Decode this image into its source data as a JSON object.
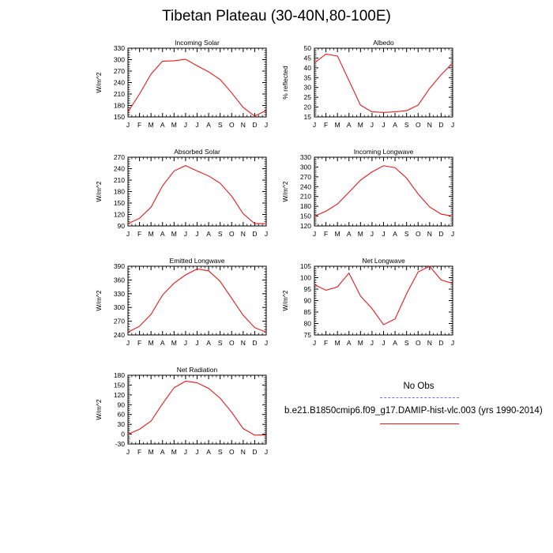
{
  "title": "Tibetan Plateau (30-40N,80-100E)",
  "legend": {
    "obs_label": "No Obs",
    "model_label": "b.e21.B1850cmip6.f09_g17.DAMIP-hist-vlc.003 (yrs 1990-2014)",
    "model_color": "#e31a1c",
    "obs_color": "#6f6fff"
  },
  "chart_data": [
    {
      "type": "line",
      "title": "Incoming Solar",
      "ylabel": "W/m^2",
      "x": [
        "J",
        "F",
        "M",
        "A",
        "M",
        "J",
        "J",
        "A",
        "S",
        "O",
        "N",
        "D",
        "J"
      ],
      "ylim": [
        150,
        330
      ],
      "yticks": [
        150,
        180,
        210,
        240,
        270,
        300,
        330
      ],
      "series": [
        {
          "values": [
            163,
            210,
            262,
            296,
            297,
            301,
            284,
            268,
            248,
            213,
            175,
            152,
            167
          ]
        }
      ]
    },
    {
      "type": "line",
      "title": "Albedo",
      "ylabel": "% reflected",
      "x": [
        "J",
        "F",
        "M",
        "A",
        "M",
        "J",
        "J",
        "A",
        "S",
        "O",
        "N",
        "D",
        "J"
      ],
      "ylim": [
        15,
        50
      ],
      "yticks": [
        15,
        20,
        25,
        30,
        35,
        40,
        45,
        50
      ],
      "series": [
        {
          "values": [
            42.5,
            47,
            46,
            33.5,
            21,
            17.6,
            17.3,
            17.6,
            18.2,
            21,
            29.5,
            36.5,
            42.5
          ]
        }
      ]
    },
    {
      "type": "line",
      "title": "Absorbed Solar",
      "ylabel": "W/m^2",
      "x": [
        "J",
        "F",
        "M",
        "A",
        "M",
        "J",
        "J",
        "A",
        "S",
        "O",
        "N",
        "D",
        "J"
      ],
      "ylim": [
        90,
        270
      ],
      "yticks": [
        90,
        120,
        150,
        180,
        210,
        240,
        270
      ],
      "series": [
        {
          "values": [
            96,
            110,
            139,
            195,
            234,
            248,
            234,
            221,
            202,
            168,
            122,
            96,
            96
          ]
        }
      ]
    },
    {
      "type": "line",
      "title": "Incoming Longwave",
      "ylabel": "W/m^2",
      "x": [
        "J",
        "F",
        "M",
        "A",
        "M",
        "J",
        "J",
        "A",
        "S",
        "O",
        "N",
        "D",
        "J"
      ],
      "ylim": [
        120,
        330
      ],
      "yticks": [
        120,
        150,
        180,
        210,
        240,
        270,
        300,
        330
      ],
      "series": [
        {
          "values": [
            150,
            165,
            187,
            223,
            260,
            285,
            304,
            298,
            266,
            218,
            178,
            156,
            150
          ]
        }
      ]
    },
    {
      "type": "line",
      "title": "Emitted Longwave",
      "ylabel": "W/m^2",
      "x": [
        "J",
        "F",
        "M",
        "A",
        "M",
        "J",
        "J",
        "A",
        "S",
        "O",
        "N",
        "D",
        "J"
      ],
      "ylim": [
        240,
        390
      ],
      "yticks": [
        240,
        270,
        300,
        330,
        360,
        390
      ],
      "series": [
        {
          "values": [
            246,
            259,
            285,
            327,
            353,
            371,
            384,
            380,
            357,
            320,
            283,
            256,
            246
          ]
        }
      ]
    },
    {
      "type": "line",
      "title": "Net Longwave",
      "ylabel": "W/m^2",
      "x": [
        "J",
        "F",
        "M",
        "A",
        "M",
        "J",
        "J",
        "A",
        "S",
        "O",
        "N",
        "D",
        "J"
      ],
      "ylim": [
        75,
        105
      ],
      "yticks": [
        75,
        80,
        85,
        90,
        95,
        100,
        105
      ],
      "series": [
        {
          "values": [
            97,
            94.5,
            96,
            102,
            92,
            86.5,
            79.5,
            82,
            93,
            102.5,
            105,
            99,
            97.5
          ]
        }
      ]
    },
    {
      "type": "line",
      "title": "Net Radiation",
      "ylabel": "W/m^2",
      "x": [
        "J",
        "F",
        "M",
        "A",
        "M",
        "J",
        "J",
        "A",
        "S",
        "O",
        "N",
        "D",
        "J"
      ],
      "ylim": [
        -30,
        180
      ],
      "yticks": [
        -30,
        0,
        30,
        60,
        90,
        120,
        150,
        180
      ],
      "series": [
        {
          "values": [
            0,
            15,
            40,
            93,
            142,
            162,
            157,
            140,
            110,
            67,
            17,
            -3,
            -2
          ]
        }
      ]
    }
  ]
}
